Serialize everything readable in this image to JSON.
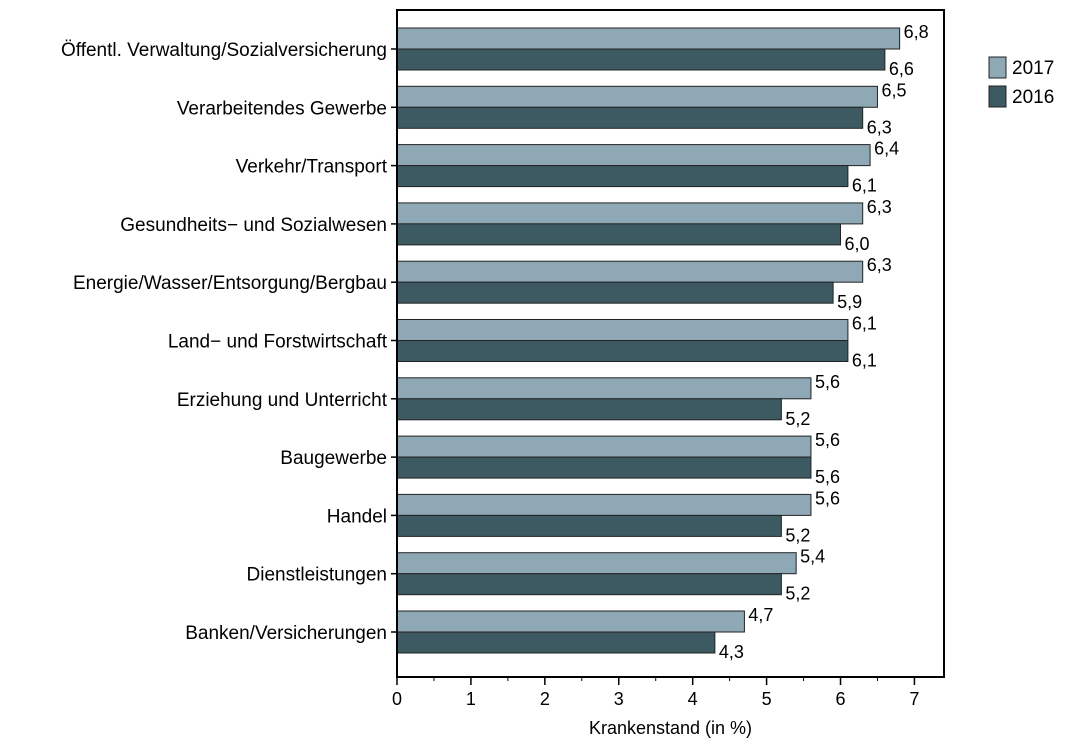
{
  "chart_data": {
    "type": "bar",
    "orientation": "horizontal",
    "categories": [
      "Öffentl. Verwaltung/Sozialversicherung",
      "Verarbeitendes Gewerbe",
      "Verkehr/Transport",
      "Gesundheits− und Sozialwesen",
      "Energie/Wasser/Entsorgung/Bergbau",
      "Land− und Forstwirtschaft",
      "Erziehung und Unterricht",
      "Baugewerbe",
      "Handel",
      "Dienstleistungen",
      "Banken/Versicherungen"
    ],
    "series": [
      {
        "name": "2017",
        "color": "#8fa8b6",
        "values": [
          6.8,
          6.5,
          6.4,
          6.3,
          6.3,
          6.1,
          5.6,
          5.6,
          5.6,
          5.4,
          4.7
        ],
        "value_labels": [
          "6,8",
          "6,5",
          "6,4",
          "6,3",
          "6,3",
          "6,1",
          "5,6",
          "5,6",
          "5,6",
          "5,4",
          "4,7"
        ]
      },
      {
        "name": "2016",
        "color": "#3d5a63",
        "values": [
          6.6,
          6.3,
          6.1,
          6.0,
          5.9,
          6.1,
          5.2,
          5.6,
          5.2,
          5.2,
          4.3
        ],
        "value_labels": [
          "6,6",
          "6,3",
          "6,1",
          "6,0",
          "5,9",
          "6,1",
          "5,2",
          "5,6",
          "5,2",
          "5,2",
          "4,3"
        ]
      }
    ],
    "xlabel": "Krankenstand (in %)",
    "ylabel": "",
    "title": "",
    "xlim": [
      0,
      7.4
    ],
    "ticks": [
      0,
      1,
      2,
      3,
      4,
      5,
      6,
      7
    ],
    "tick_labels": [
      "0",
      "1",
      "2",
      "3",
      "4",
      "5",
      "6",
      "7"
    ],
    "grid": false,
    "legend_position": "top-right"
  }
}
